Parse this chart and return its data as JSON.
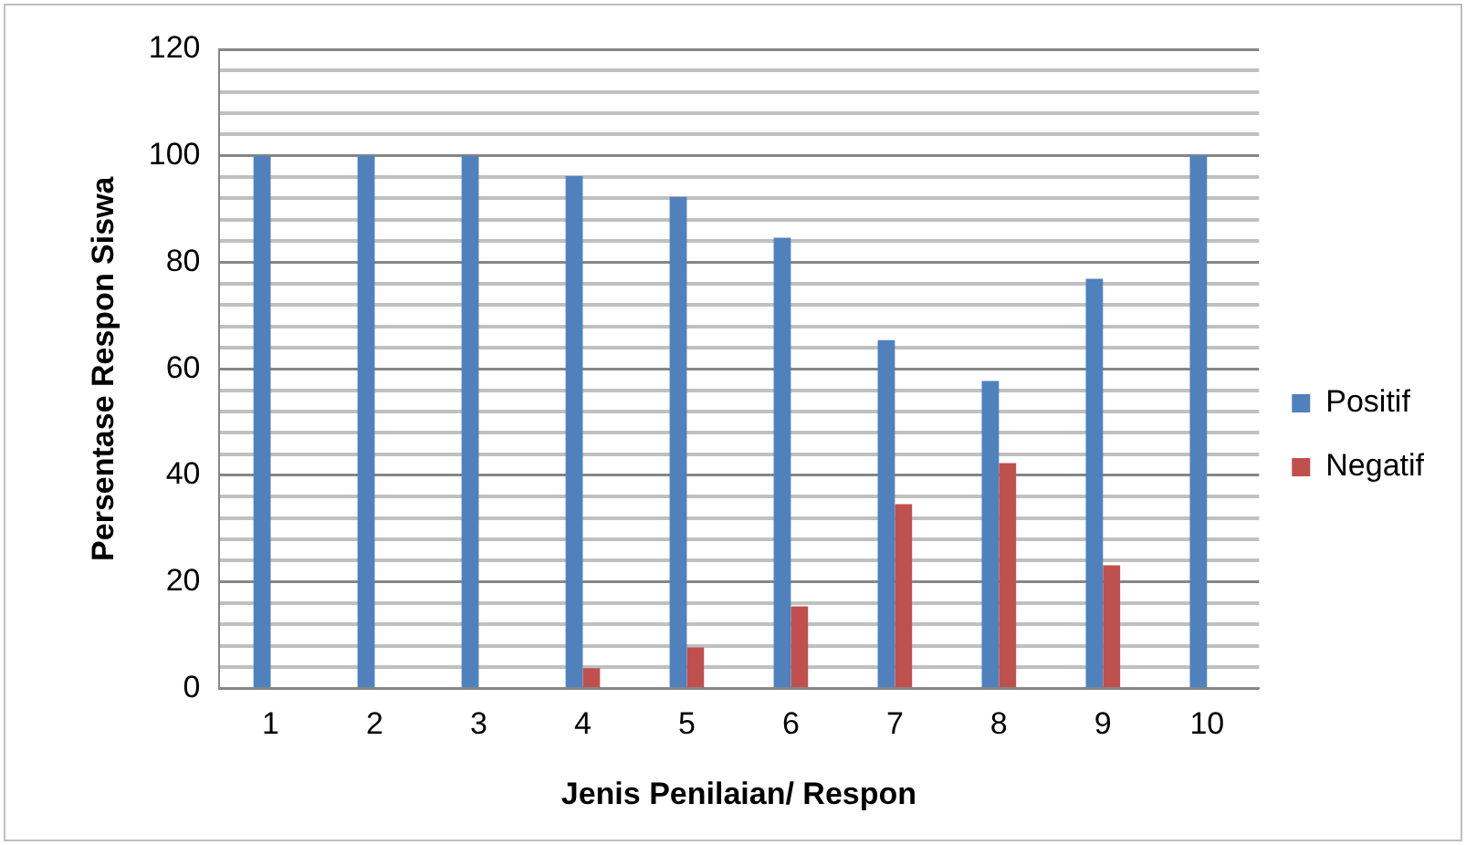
{
  "chart_data": {
    "type": "bar",
    "xlabel": "Jenis Penilaian/ Respon",
    "ylabel": "Persentase Respon Siswa",
    "categories": [
      "1",
      "2",
      "3",
      "4",
      "5",
      "6",
      "7",
      "8",
      "9",
      "10"
    ],
    "series": [
      {
        "name": "Positif",
        "color": "#4f81bd",
        "values": [
          100,
          100,
          100,
          96.2,
          92.3,
          84.6,
          65.4,
          57.7,
          76.9,
          100
        ]
      },
      {
        "name": "Negatif",
        "color": "#c0504d",
        "values": [
          0,
          0,
          0,
          3.8,
          7.7,
          15.4,
          34.6,
          42.3,
          23.1,
          0
        ]
      }
    ],
    "ylim": [
      0,
      120
    ],
    "yticks": [
      0,
      {
        "value": 4,
        "label": null
      },
      {
        "value": 8,
        "label": null
      },
      {
        "value": 12,
        "label": null
      },
      {
        "value": 16,
        "label": null
      },
      20,
      {
        "value": 24,
        "label": null
      },
      {
        "value": 28,
        "label": null
      },
      {
        "value": 32,
        "label": null
      },
      {
        "value": 36,
        "label": null
      },
      40,
      {
        "value": 44,
        "label": null
      },
      {
        "value": 48,
        "label": null
      },
      {
        "value": 52,
        "label": null
      },
      {
        "value": 56,
        "label": null
      },
      60,
      {
        "value": 64,
        "label": null
      },
      {
        "value": 68,
        "label": null
      },
      {
        "value": 72,
        "label": null
      },
      {
        "value": 76,
        "label": null
      },
      80,
      {
        "value": 84,
        "label": null
      },
      {
        "value": 88,
        "label": null
      },
      {
        "value": 92,
        "label": null
      },
      {
        "value": 96,
        "label": null
      },
      100,
      {
        "value": 104,
        "label": null
      },
      {
        "value": 108,
        "label": null
      },
      {
        "value": 112,
        "label": null
      },
      {
        "value": 116,
        "label": null
      },
      120
    ],
    "grid": "y",
    "legend": "right"
  }
}
